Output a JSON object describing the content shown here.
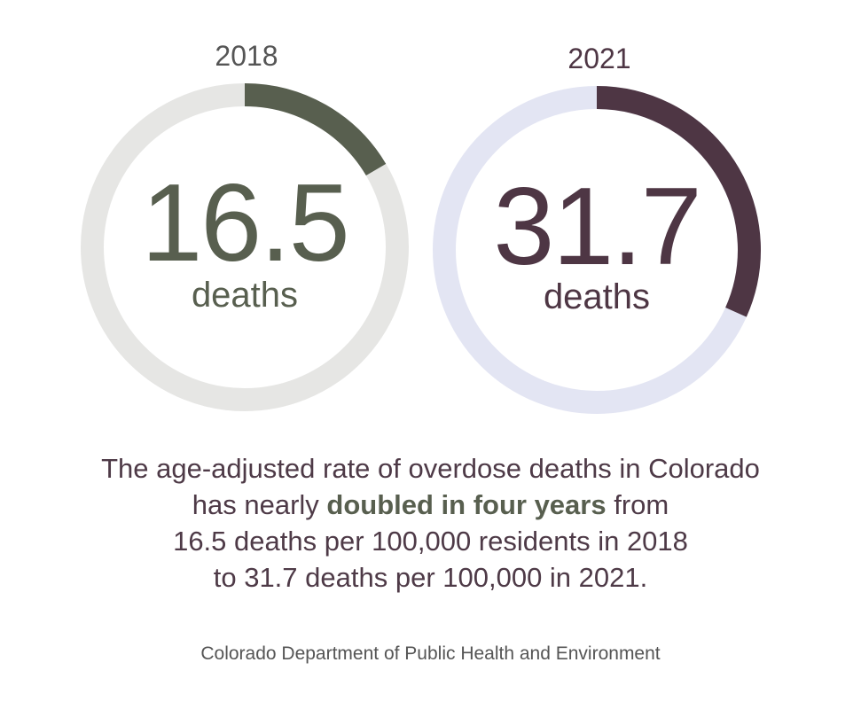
{
  "chart_data": [
    {
      "type": "pie",
      "year": "2018",
      "value": 16.5,
      "value_label": "16.5",
      "unit": "deaths",
      "max": 100,
      "colors": {
        "arc": "#585f4f",
        "track": "#e6e6e4",
        "text": "#585f4f",
        "year": "#555555"
      }
    },
    {
      "type": "pie",
      "year": "2021",
      "value": 31.7,
      "value_label": "31.7",
      "unit": "deaths",
      "max": 100,
      "colors": {
        "arc": "#4e3644",
        "track": "#e3e5f3",
        "text": "#4e3644",
        "year": "#4e3644"
      }
    }
  ],
  "description": {
    "line1": "The age-adjusted rate of overdose deaths in Colorado",
    "line2_pre": "has nearly ",
    "line2_bold": "doubled in four years",
    "line2_post": " from",
    "line3": "16.5 deaths per 100,000 residents in 2018",
    "line4": "to 31.7 deaths per 100,000 in 2021."
  },
  "source": "Colorado Department of Public Health and Environment"
}
